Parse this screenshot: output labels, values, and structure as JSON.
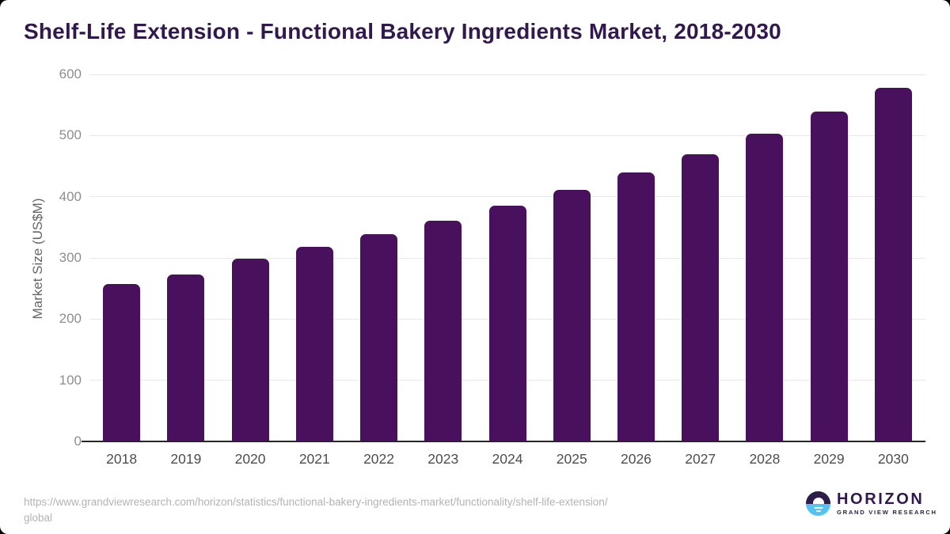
{
  "title": "Shelf-Life Extension - Functional Bakery Ingredients Market, 2018-2030",
  "chart_data": {
    "type": "bar",
    "categories": [
      "2018",
      "2019",
      "2020",
      "2021",
      "2022",
      "2023",
      "2024",
      "2025",
      "2026",
      "2027",
      "2028",
      "2029",
      "2030"
    ],
    "values": [
      257,
      273,
      299,
      318,
      339,
      361,
      386,
      411,
      440,
      470,
      503,
      539,
      578
    ],
    "title": "Shelf-Life Extension - Functional Bakery Ingredients Market, 2018-2030",
    "xlabel": "",
    "ylabel": "Market Size (US$M)",
    "ylim": [
      0,
      600
    ],
    "yticks": [
      0,
      100,
      200,
      300,
      400,
      500,
      600
    ],
    "grid": "horizontal",
    "legend": "none",
    "bar_color": "#49105e"
  },
  "colors": {
    "bar": "#49105e",
    "title_text": "#32194d",
    "axis_line": "#262626",
    "gridline": "#e8e8e8",
    "y_tick_label": "#8e8e8e",
    "x_tick_label": "#4d4d4d",
    "source_text": "#b3b3b3",
    "logo_dark": "#2e1d49",
    "logo_blue": "#55c3f2",
    "background": "#ffffff"
  },
  "footer": {
    "source_lines": [
      "https://www.grandviewresearch.com/horizon/statistics/functional-bakery-ingredients-market/functionality/shelf-life-extension/",
      "global"
    ],
    "logo": {
      "brand": "HORIZON",
      "subbrand": "GRAND VIEW RESEARCH"
    }
  }
}
